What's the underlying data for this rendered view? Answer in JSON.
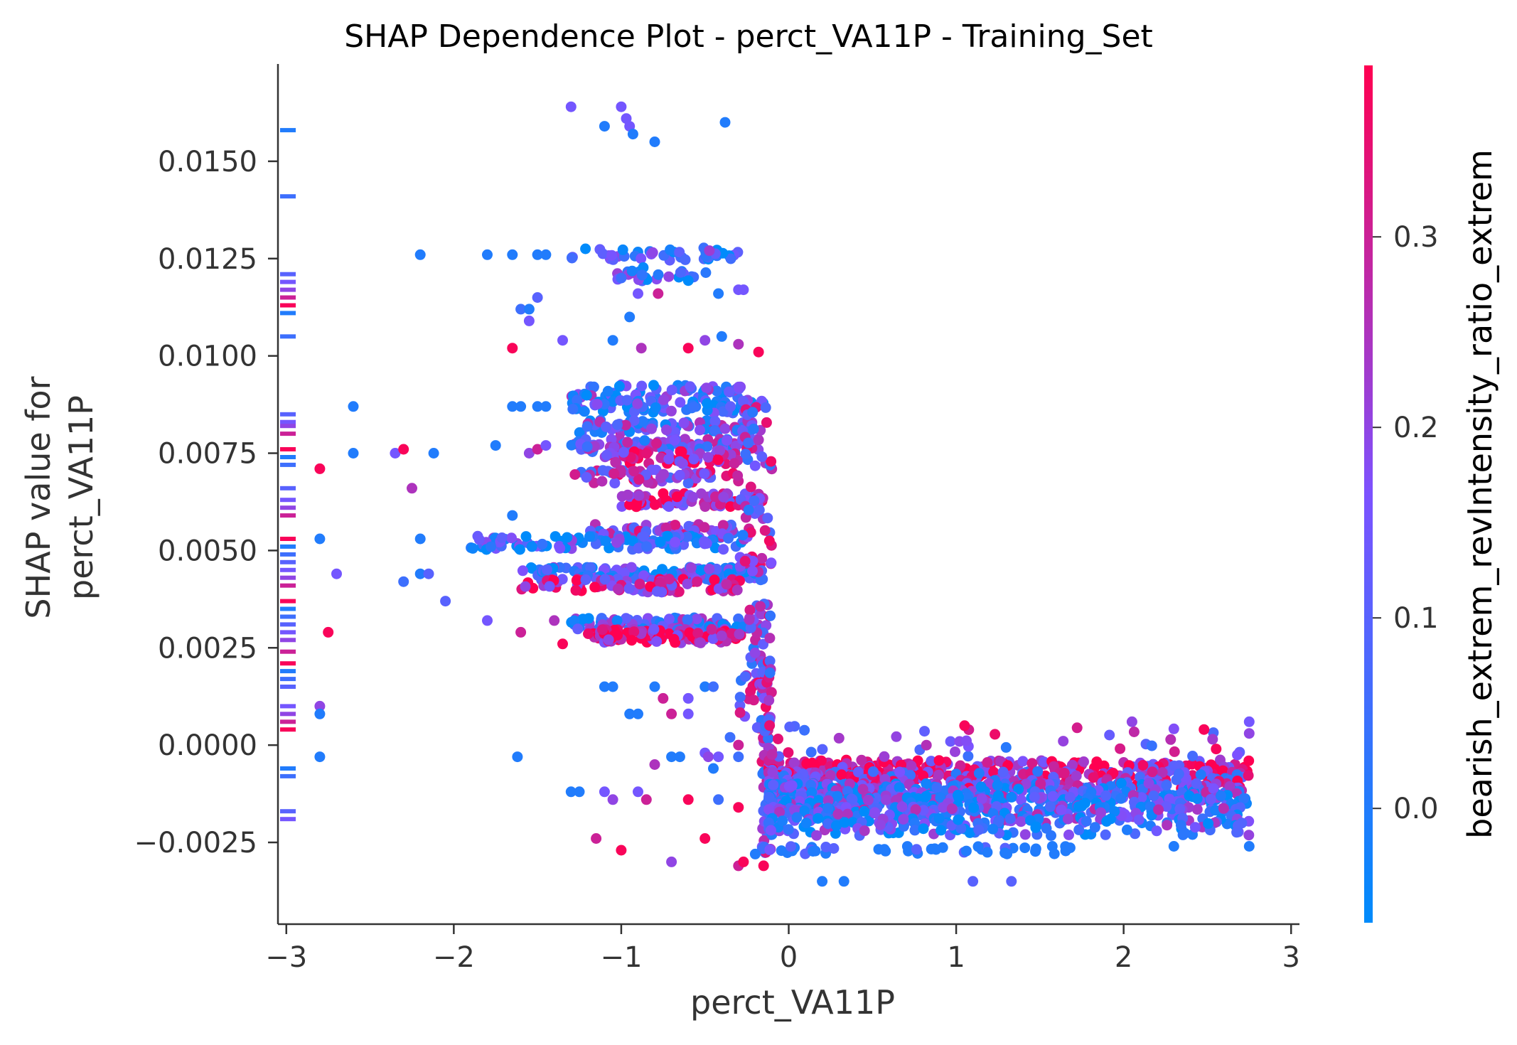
{
  "chart_data": {
    "type": "scatter",
    "title": "SHAP Dependence Plot - perct_VA11P - Training_Set",
    "xlabel": "perct_VA11P",
    "ylabel_lines": [
      "SHAP value for",
      "perct_VA11P"
    ],
    "xlim": [
      -3.05,
      3.05
    ],
    "ylim": [
      -0.0046,
      0.0175
    ],
    "x_ticks": [
      -3,
      -2,
      -1,
      0,
      1,
      2,
      3
    ],
    "x_tick_labels": [
      "−3",
      "−2",
      "−1",
      "0",
      "1",
      "2",
      "3"
    ],
    "y_ticks": [
      -0.0025,
      0.0,
      0.0025,
      0.005,
      0.0075,
      0.01,
      0.0125,
      0.015
    ],
    "y_tick_labels": [
      "−0.0025",
      "0.0000",
      "0.0025",
      "0.0050",
      "0.0075",
      "0.0100",
      "0.0125",
      "0.0150"
    ],
    "colorbar": {
      "label": "bearish_extrem_revIntensity_ratio_extrem",
      "range": [
        -0.06,
        0.39
      ],
      "ticks": [
        0.0,
        0.1,
        0.2,
        0.3
      ],
      "tick_labels": [
        "0.0",
        "0.1",
        "0.2",
        "0.3"
      ],
      "color_low": "#008bfb",
      "color_mid": "#7c52ff",
      "color_high": "#ff0051"
    },
    "grid": false,
    "legend": "colorbar-right",
    "points": [
      [
        -2.6,
        0.0087,
        0.0
      ],
      [
        -2.6,
        0.0075,
        0.0
      ],
      [
        -2.8,
        0.0071,
        0.38
      ],
      [
        -2.8,
        0.0053,
        0.0
      ],
      [
        -2.7,
        0.0044,
        0.15
      ],
      [
        -2.75,
        0.0029,
        0.38
      ],
      [
        -2.8,
        0.001,
        0.2
      ],
      [
        -2.8,
        0.0008,
        0.0
      ],
      [
        -2.8,
        -0.0003,
        0.0
      ],
      [
        -2.35,
        0.0075,
        0.15
      ],
      [
        -2.3,
        0.0076,
        0.38
      ],
      [
        -2.25,
        0.0066,
        0.25
      ],
      [
        -2.12,
        0.0075,
        0.0
      ],
      [
        -2.2,
        0.0053,
        0.0
      ],
      [
        -2.2,
        0.0044,
        0.0
      ],
      [
        -2.15,
        0.0044,
        0.1
      ],
      [
        -2.3,
        0.0042,
        0.05
      ],
      [
        -2.05,
        0.0037,
        0.1
      ],
      [
        -1.8,
        0.0032,
        0.15
      ],
      [
        -2.2,
        0.0126,
        0.0
      ],
      [
        -1.8,
        0.0126,
        0.0
      ],
      [
        -1.65,
        0.0126,
        0.0
      ],
      [
        -1.5,
        0.0126,
        0.0
      ],
      [
        -1.45,
        0.0126,
        0.0
      ],
      [
        -1.75,
        0.0077,
        0.0
      ],
      [
        -1.65,
        0.0087,
        0.0
      ],
      [
        -1.6,
        0.0087,
        0.0
      ],
      [
        -1.45,
        0.0087,
        0.0
      ],
      [
        -1.5,
        0.0087,
        0.0
      ],
      [
        -1.6,
        0.0112,
        0.05
      ],
      [
        -1.55,
        0.0112,
        0.0
      ],
      [
        -1.5,
        0.0115,
        0.1
      ],
      [
        -1.55,
        0.0109,
        0.15
      ],
      [
        -1.65,
        0.0102,
        0.38
      ],
      [
        -1.35,
        0.0104,
        0.15
      ],
      [
        -1.65,
        0.0059,
        0.0
      ],
      [
        -1.55,
        0.0075,
        0.2
      ],
      [
        -1.5,
        0.0076,
        0.3
      ],
      [
        -1.45,
        0.0077,
        0.15
      ],
      [
        -1.6,
        0.0029,
        0.3
      ],
      [
        -1.4,
        0.0032,
        0.25
      ],
      [
        -1.35,
        0.0026,
        0.38
      ],
      [
        -1.62,
        -0.0003,
        0.0
      ],
      [
        -1.3,
        0.0164,
        0.15
      ],
      [
        -1.0,
        0.0164,
        0.15
      ],
      [
        -0.97,
        0.0161,
        0.15
      ],
      [
        -1.1,
        0.0159,
        0.0
      ],
      [
        -0.95,
        0.0159,
        0.15
      ],
      [
        -0.93,
        0.0157,
        0.0
      ],
      [
        -0.8,
        0.0155,
        0.0
      ],
      [
        -0.38,
        0.016,
        0.0
      ],
      [
        -1.0,
        0.012,
        0.05
      ],
      [
        -0.9,
        0.0116,
        0.15
      ],
      [
        -0.78,
        0.0116,
        0.3
      ],
      [
        -0.42,
        0.0116,
        0.0
      ],
      [
        -0.3,
        0.0117,
        0.15
      ],
      [
        -0.27,
        0.0117,
        0.15
      ],
      [
        -0.95,
        0.011,
        0.0
      ],
      [
        -1.05,
        0.0104,
        0.0
      ],
      [
        -0.88,
        0.0102,
        0.25
      ],
      [
        -0.4,
        0.0105,
        0.0
      ],
      [
        -0.5,
        0.0104,
        0.2
      ],
      [
        -0.6,
        0.0102,
        0.38
      ],
      [
        -0.3,
        0.0103,
        0.25
      ],
      [
        -0.18,
        0.0101,
        0.38
      ],
      [
        -1.1,
        0.0015,
        0.0
      ],
      [
        -1.05,
        0.0015,
        0.0
      ],
      [
        -0.8,
        0.0015,
        0.0
      ],
      [
        -0.5,
        0.0015,
        0.0
      ],
      [
        -0.45,
        0.0015,
        0.05
      ],
      [
        -0.75,
        0.0012,
        0.3
      ],
      [
        -0.6,
        0.0012,
        0.15
      ],
      [
        -0.95,
        0.0008,
        0.0
      ],
      [
        -0.9,
        0.0008,
        0.0
      ],
      [
        -0.7,
        0.0008,
        0.3
      ],
      [
        -0.6,
        0.0008,
        0.15
      ],
      [
        -0.35,
        0.0002,
        0.05
      ],
      [
        -0.3,
        0.0,
        0.3
      ],
      [
        -0.7,
        -0.0003,
        0.0
      ],
      [
        -0.65,
        -0.0003,
        0.0
      ],
      [
        -0.5,
        -0.0002,
        0.15
      ],
      [
        -0.48,
        -0.0003,
        0.2
      ],
      [
        -0.42,
        -0.0003,
        0.15
      ],
      [
        -0.8,
        -0.0005,
        0.25
      ],
      [
        -0.45,
        -0.0006,
        0.0
      ],
      [
        -0.3,
        -0.0003,
        0.05
      ],
      [
        -1.3,
        -0.0012,
        0.0
      ],
      [
        -1.25,
        -0.0012,
        0.0
      ],
      [
        -1.1,
        -0.0012,
        0.15
      ],
      [
        -1.05,
        -0.0014,
        0.2
      ],
      [
        -0.9,
        -0.0012,
        0.15
      ],
      [
        -0.85,
        -0.0014,
        0.3
      ],
      [
        -0.6,
        -0.0014,
        0.38
      ],
      [
        -0.42,
        -0.0014,
        0.05
      ],
      [
        -0.3,
        -0.0016,
        0.38
      ],
      [
        -1.15,
        -0.0024,
        0.3
      ],
      [
        -1.0,
        -0.0027,
        0.38
      ],
      [
        -0.7,
        -0.003,
        0.2
      ],
      [
        -0.5,
        -0.0024,
        0.38
      ],
      [
        -0.3,
        -0.0031,
        0.3
      ],
      [
        -0.27,
        -0.003,
        0.38
      ],
      [
        -0.15,
        -0.0031,
        0.38
      ],
      [
        -0.2,
        -0.0028,
        0.0
      ]
    ]
  },
  "colors": {
    "axis": "#333333",
    "background": "#ffffff"
  }
}
